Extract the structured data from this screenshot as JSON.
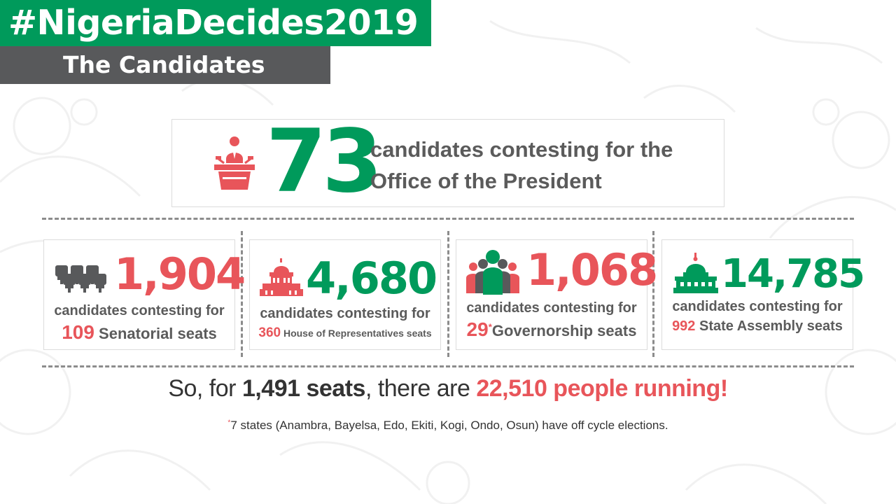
{
  "header": {
    "hashtag": "#NigeriaDecides2019",
    "subtitle": "The Candidates"
  },
  "president": {
    "count": "73",
    "line1": "candidates contesting for the",
    "line2": "Office of the President",
    "icon": "podium-speaker-icon"
  },
  "cards": [
    {
      "count": "1,904",
      "line1": "candidates contesting for",
      "seats": "109",
      "seat_label": "Senatorial seats",
      "icon": "senate-chairs-icon"
    },
    {
      "count": "4,680",
      "line1": "candidates contesting for",
      "seats": "360",
      "seat_label": "House of Representatives seats",
      "icon": "house-building-icon"
    },
    {
      "count": "1,068",
      "line1": "candidates contesting for",
      "seats": "29",
      "seats_mark": "*",
      "seat_label": "Governorship seats",
      "icon": "people-group-icon"
    },
    {
      "count": "14,785",
      "line1": "candidates contesting for",
      "seats": "992",
      "seat_label": "State Assembly seats",
      "icon": "assembly-building-icon"
    }
  ],
  "summary": {
    "prefix": "So, for ",
    "seats": "1,491 seats",
    "middle": ", there are ",
    "people": "22,510 people running!"
  },
  "footnote": {
    "mark": "*",
    "text": "7 states (Anambra, Bayelsa, Edo, Ekiti, Kogi, Ondo, Osun) have off cycle elections."
  },
  "colors": {
    "green": "#009a5b",
    "red": "#e8555a",
    "dark_gray": "#58595b",
    "text_gray": "#5b5b5b"
  }
}
